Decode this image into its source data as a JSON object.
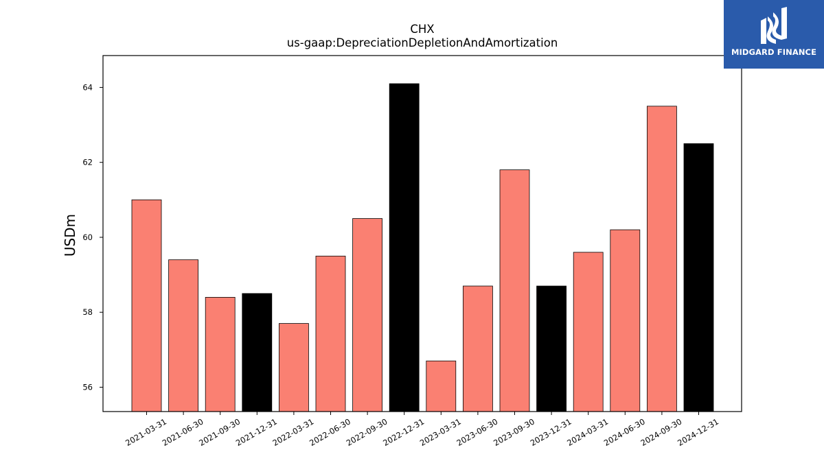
{
  "brand": {
    "name": "MIDGARD FINANCE",
    "background": "#2a5bab",
    "icon": "midgard-finance-logo-icon"
  },
  "chart_data": {
    "type": "bar",
    "title": "CHX",
    "subtitle": "us-gaap:DepreciationDepletionAndAmortization",
    "xlabel": "",
    "ylabel": "USDm",
    "ylim": [
      55.35,
      64.85
    ],
    "yticks": [
      56,
      58,
      60,
      62,
      64
    ],
    "grid": false,
    "categories": [
      "2021-03-31",
      "2021-06-30",
      "2021-09-30",
      "2021-12-31",
      "2022-03-31",
      "2022-06-30",
      "2022-09-30",
      "2022-12-31",
      "2023-03-31",
      "2023-06-30",
      "2023-09-30",
      "2023-12-31",
      "2024-03-31",
      "2024-06-30",
      "2024-09-30",
      "2024-12-31"
    ],
    "values": [
      61.0,
      59.4,
      58.4,
      58.5,
      57.7,
      59.5,
      60.5,
      64.1,
      56.7,
      58.7,
      61.8,
      58.7,
      59.6,
      60.2,
      63.5,
      62.5
    ],
    "colors": [
      "#fa8072",
      "#fa8072",
      "#fa8072",
      "#000000",
      "#fa8072",
      "#fa8072",
      "#fa8072",
      "#000000",
      "#fa8072",
      "#fa8072",
      "#fa8072",
      "#000000",
      "#fa8072",
      "#fa8072",
      "#fa8072",
      "#000000"
    ]
  }
}
